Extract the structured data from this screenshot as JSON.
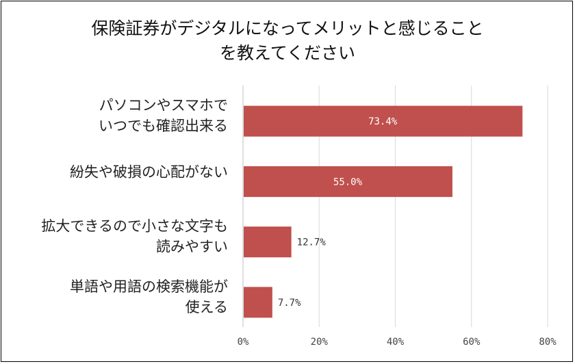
{
  "chart_data": {
    "type": "bar",
    "orientation": "horizontal",
    "title_lines": [
      "保険証券がデジタルになってメリットと感じること",
      "を教えてください"
    ],
    "categories": [
      [
        "パソコンやスマホで",
        "いつでも確認出来る"
      ],
      [
        "紛失や破損の心配がない"
      ],
      [
        "拡大できるので小さな文字も",
        "読みやすい"
      ],
      [
        "単語や用語の検索機能が",
        "使える"
      ]
    ],
    "values": [
      73.4,
      55.0,
      12.7,
      7.7
    ],
    "value_labels": [
      "73.4%",
      "55.0%",
      "12.7%",
      "7.7%"
    ],
    "xlim": [
      0,
      80
    ],
    "xticks": [
      "0%",
      "20%",
      "40%",
      "60%",
      "80%"
    ],
    "bar_color": "#c0504d",
    "grid": true
  }
}
